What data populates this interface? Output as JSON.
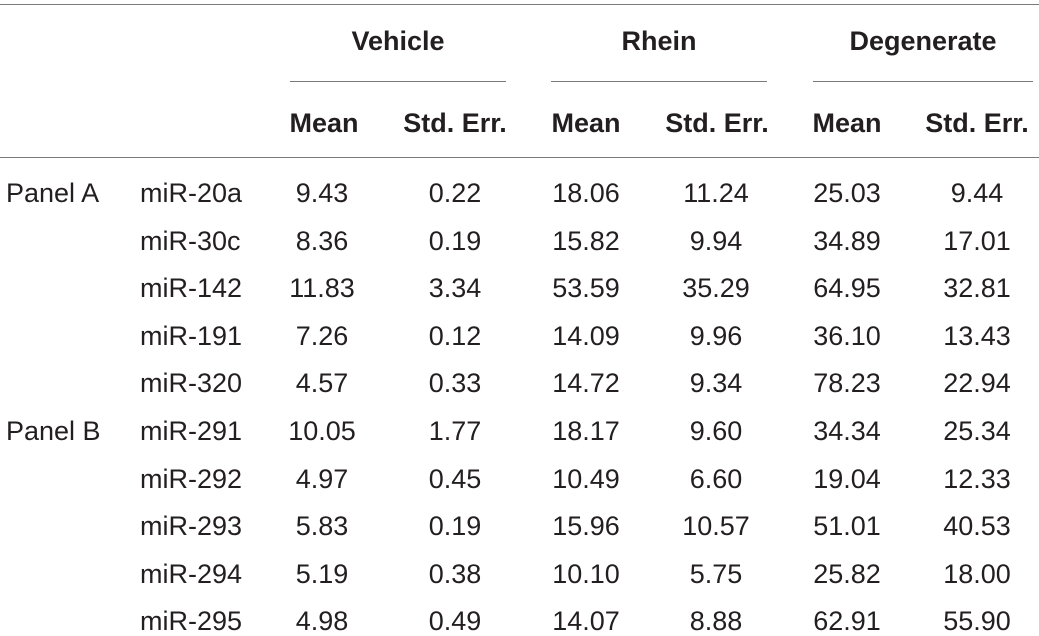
{
  "groups": [
    "Vehicle",
    "Rhein",
    "Degenerate"
  ],
  "subheaders": [
    "Mean",
    "Std. Err.",
    "Mean",
    "Std. Err.",
    "Mean",
    "Std. Err."
  ],
  "rows": [
    {
      "panel": "Panel A",
      "mirna": "miR-20a",
      "values": [
        "9.43",
        "0.22",
        "18.06",
        "11.24",
        "25.03",
        "9.44"
      ]
    },
    {
      "panel": "",
      "mirna": "miR-30c",
      "values": [
        "8.36",
        "0.19",
        "15.82",
        "9.94",
        "34.89",
        "17.01"
      ]
    },
    {
      "panel": "",
      "mirna": "miR-142",
      "values": [
        "11.83",
        "3.34",
        "53.59",
        "35.29",
        "64.95",
        "32.81"
      ]
    },
    {
      "panel": "",
      "mirna": "miR-191",
      "values": [
        "7.26",
        "0.12",
        "14.09",
        "9.96",
        "36.10",
        "13.43"
      ]
    },
    {
      "panel": "",
      "mirna": "miR-320",
      "values": [
        "4.57",
        "0.33",
        "14.72",
        "9.34",
        "78.23",
        "22.94"
      ]
    },
    {
      "panel": "Panel B",
      "mirna": "miR-291",
      "values": [
        "10.05",
        "1.77",
        "18.17",
        "9.60",
        "34.34",
        "25.34"
      ]
    },
    {
      "panel": "",
      "mirna": "miR-292",
      "values": [
        "4.97",
        "0.45",
        "10.49",
        "6.60",
        "19.04",
        "12.33"
      ]
    },
    {
      "panel": "",
      "mirna": "miR-293",
      "values": [
        "5.83",
        "0.19",
        "15.96",
        "10.57",
        "51.01",
        "40.53"
      ]
    },
    {
      "panel": "",
      "mirna": "miR-294",
      "values": [
        "5.19",
        "0.38",
        "10.10",
        "5.75",
        "25.82",
        "18.00"
      ]
    },
    {
      "panel": "",
      "mirna": "miR-295",
      "values": [
        "4.98",
        "0.49",
        "14.07",
        "8.88",
        "62.91",
        "55.90"
      ]
    }
  ]
}
